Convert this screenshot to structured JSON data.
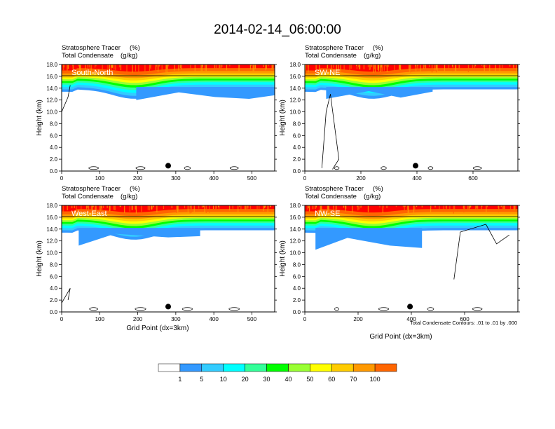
{
  "title": "2014-02-14_06:00:00",
  "colors": [
    "#ffffff",
    "#3399ff",
    "#33ccff",
    "#00ffff",
    "#33ff99",
    "#00ff00",
    "#99ff33",
    "#ffff00",
    "#ffcc00",
    "#ff9900",
    "#ff6600",
    "#ff0000"
  ],
  "contour_note": "Total Condensate Contours: .01 to .01 by .000",
  "colorbar": {
    "labels": [
      "1",
      "5",
      "10",
      "20",
      "30",
      "40",
      "50",
      "60",
      "70",
      "100"
    ]
  },
  "chart_data": [
    {
      "type": "heatmap",
      "panel": "South-North",
      "subtitle_left_1": "Stratosphere Tracer",
      "subtitle_unit_1": "(%)",
      "subtitle_left_2": "Total Condensate",
      "subtitle_unit_2": "(g/kg)",
      "xlabel": "",
      "ylabel": "Height (km)",
      "xlim": [
        0,
        560
      ],
      "ylim": [
        0,
        18
      ],
      "xticks": [
        "0",
        "100",
        "200",
        "300",
        "400",
        "500"
      ],
      "yticks": [
        "0.0",
        "2.0",
        "4.0",
        "6.0",
        "8.0",
        "10.0",
        "12.0",
        "14.0",
        "16.0",
        "18.0"
      ],
      "marker_x": 280
    },
    {
      "type": "heatmap",
      "panel": "SW-NE",
      "subtitle_left_1": "Stratosphere Tracer",
      "subtitle_unit_1": "(%)",
      "subtitle_left_2": "Total Condensate",
      "subtitle_unit_2": "(g/kg)",
      "xlabel": "",
      "ylabel": "Height (km)",
      "xlim": [
        0,
        760
      ],
      "ylim": [
        0,
        18
      ],
      "xticks": [
        "0",
        "200",
        "400",
        "600"
      ],
      "yticks": [
        "0.0",
        "2.0",
        "4.0",
        "6.0",
        "8.0",
        "10.0",
        "12.0",
        "14.0",
        "16.0",
        "18.0"
      ],
      "marker_x": 395
    },
    {
      "type": "heatmap",
      "panel": "West-East",
      "subtitle_left_1": "Stratosphere Tracer",
      "subtitle_unit_1": "(%)",
      "subtitle_left_2": "Total Condensate",
      "subtitle_unit_2": "(g/kg)",
      "xlabel": "Grid Point (dx=3km)",
      "ylabel": "Height (km)",
      "xlim": [
        0,
        560
      ],
      "ylim": [
        0,
        18
      ],
      "xticks": [
        "0",
        "100",
        "200",
        "300",
        "400",
        "500"
      ],
      "yticks": [
        "0.0",
        "2.0",
        "4.0",
        "6.0",
        "8.0",
        "10.0",
        "12.0",
        "14.0",
        "16.0",
        "18.0"
      ],
      "marker_x": 280
    },
    {
      "type": "heatmap",
      "panel": "NW-SE",
      "subtitle_left_1": "Stratosphere Tracer",
      "subtitle_unit_1": "(%)",
      "subtitle_left_2": "Total Condensate",
      "subtitle_unit_2": "(g/kg)",
      "xlabel": "Grid Point (dx=3km)",
      "ylabel": "Height (km)",
      "xlim": [
        0,
        800
      ],
      "ylim": [
        0,
        18
      ],
      "xticks": [
        "0",
        "200",
        "400",
        "600"
      ],
      "yticks": [
        "0.0",
        "2.0",
        "4.0",
        "6.0",
        "8.0",
        "10.0",
        "12.0",
        "14.0",
        "16.0",
        "18.0"
      ],
      "marker_x": 395
    }
  ]
}
